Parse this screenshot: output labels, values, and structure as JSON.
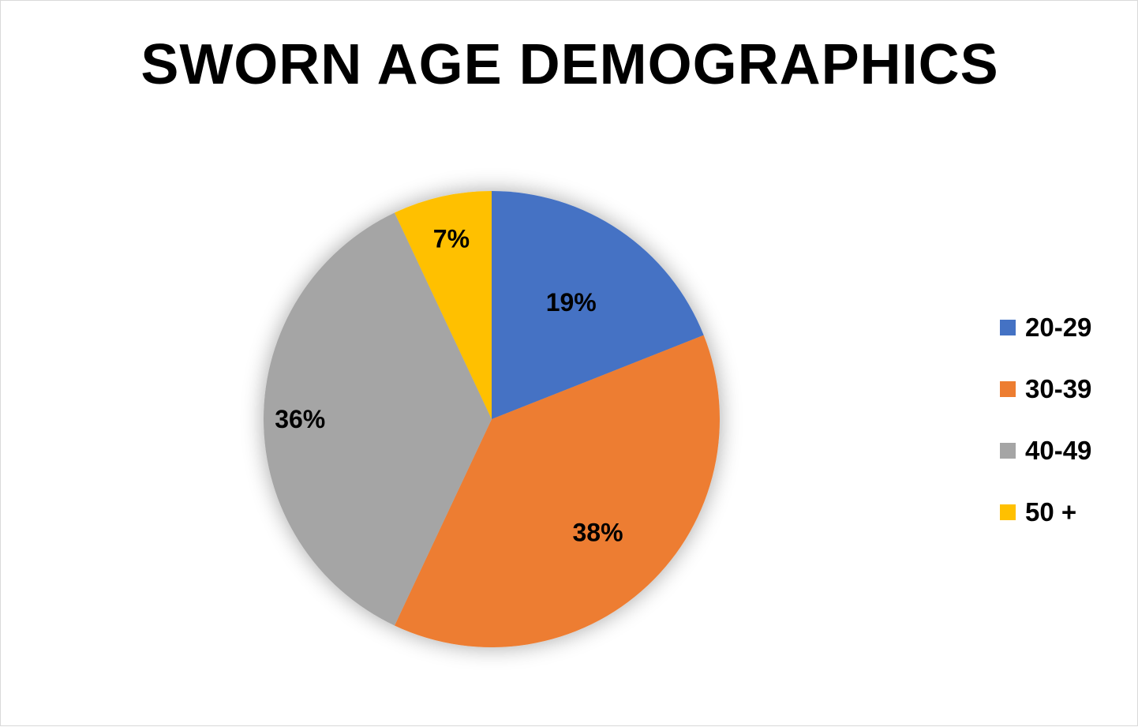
{
  "chart_data": {
    "type": "pie",
    "title": "SWORN AGE DEMOGRAPHICS",
    "categories": [
      "20-29",
      "30-39",
      "40-49",
      "50 +"
    ],
    "values": [
      19,
      38,
      36,
      7
    ],
    "labels": [
      "19%",
      "38%",
      "36%",
      "7%"
    ],
    "colors": [
      "#4472c4",
      "#ed7d31",
      "#a5a5a5",
      "#ffc000"
    ],
    "legend_position": "right"
  }
}
